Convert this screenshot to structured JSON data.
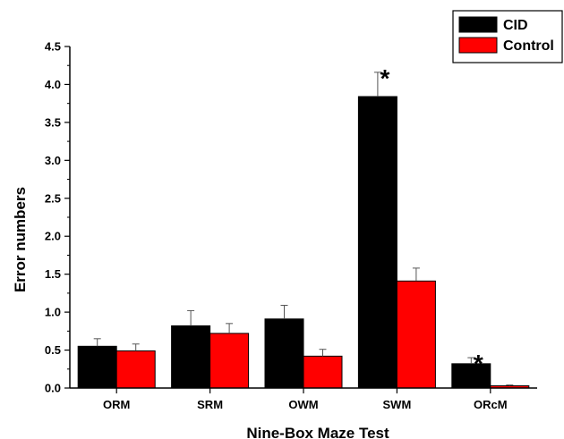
{
  "chart_data": {
    "type": "bar",
    "title": "",
    "xlabel": "Nine-Box Maze Test",
    "ylabel": "Error numbers",
    "categories": [
      "ORM",
      "SRM",
      "OWM",
      "SWM",
      "ORcM"
    ],
    "ylim": [
      0,
      4.5
    ],
    "yticks": [
      "0.0",
      "0.5",
      "1.0",
      "1.5",
      "2.0",
      "2.5",
      "3.0",
      "3.5",
      "4.0",
      "4.5"
    ],
    "series": [
      {
        "name": "CID",
        "color": "#000000",
        "values": [
          0.55,
          0.82,
          0.91,
          3.84,
          0.32
        ],
        "errors": [
          0.1,
          0.2,
          0.18,
          0.32,
          0.08
        ]
      },
      {
        "name": "Control",
        "color": "#ff0000",
        "values": [
          0.49,
          0.72,
          0.42,
          1.41,
          0.03
        ],
        "errors": [
          0.09,
          0.13,
          0.09,
          0.17,
          0.01
        ]
      }
    ],
    "significance": [
      {
        "category": "SWM",
        "series": "CID",
        "text": "*"
      },
      {
        "category": "ORcM",
        "series": "CID",
        "text": "*"
      }
    ],
    "legend_position": "top-right",
    "grid": false
  }
}
